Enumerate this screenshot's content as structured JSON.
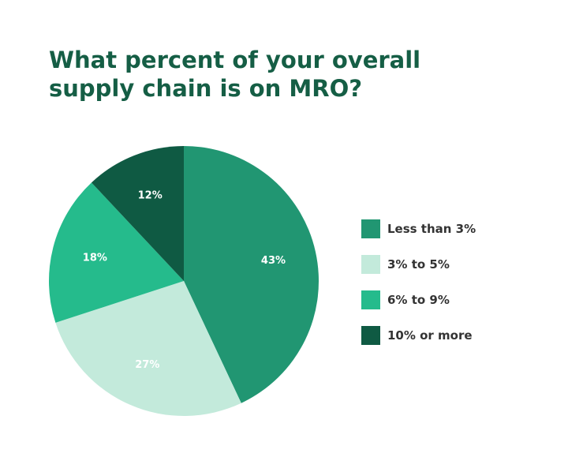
{
  "title": {
    "line1": "What percent of your overall",
    "line2": "supply chain is on MRO?"
  },
  "chart_data": {
    "type": "pie",
    "title": "What percent of your overall supply chain is on MRO?",
    "start_angle_deg": 0,
    "direction": "clockwise",
    "legend_position": "right",
    "slices": [
      {
        "name": "Less than 3%",
        "value": 43,
        "label": "43%",
        "color": "#219672"
      },
      {
        "name": "3% to 5%",
        "value": 27,
        "label": "27%",
        "color": "#c3eadb"
      },
      {
        "name": "6% to 9%",
        "value": 18,
        "label": "18%",
        "color": "#25bb8c"
      },
      {
        "name": "10% or more",
        "value": 12,
        "label": "12%",
        "color": "#0f5a43"
      }
    ]
  }
}
